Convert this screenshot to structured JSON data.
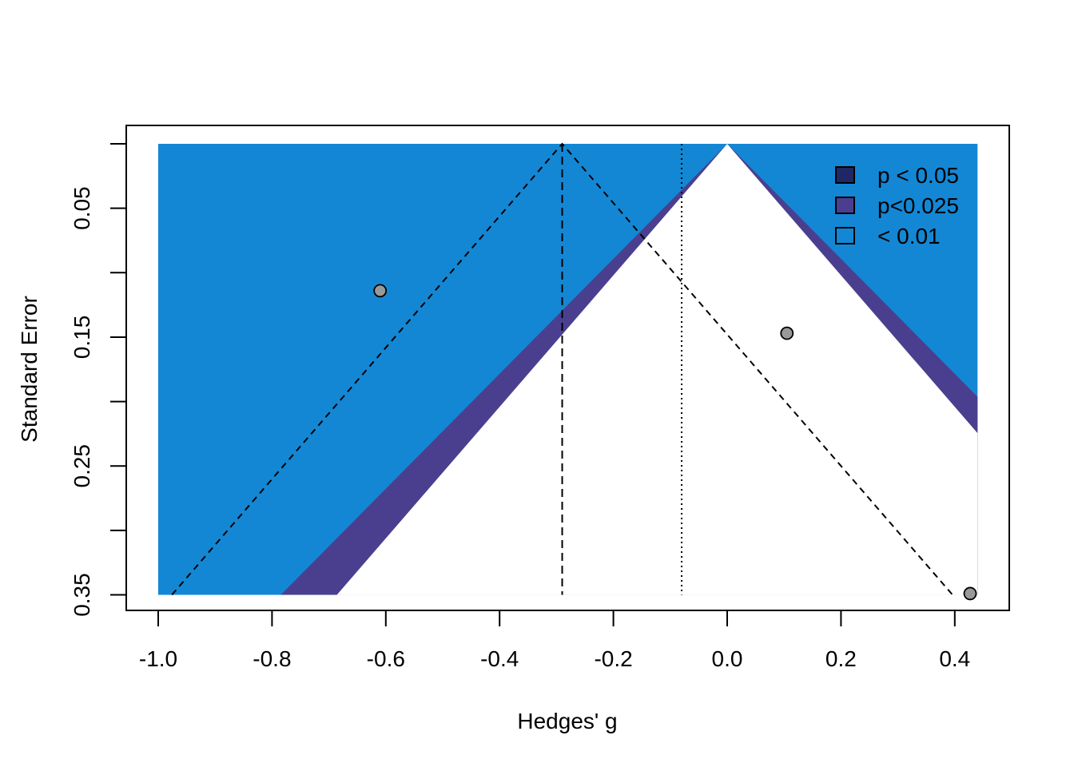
{
  "chart_data": {
    "type": "scatter",
    "subtype": "contour-enhanced funnel plot",
    "title": "",
    "xlabel": "Hedges' g",
    "ylabel": "Standard Error",
    "xlim": [
      -1.0,
      0.44
    ],
    "ylim": [
      0.35,
      0.0
    ],
    "y_reversed": true,
    "x_ticks": [
      "-1.0",
      "-0.8",
      "-0.6",
      "-0.4",
      "-0.2",
      "0.0",
      "0.2",
      "0.4"
    ],
    "y_ticks": [
      {
        "value": 0.0,
        "label": ""
      },
      {
        "value": 0.05,
        "label": "0.05"
      },
      {
        "value": 0.1,
        "label": ""
      },
      {
        "value": 0.15,
        "label": "0.15"
      },
      {
        "value": 0.2,
        "label": ""
      },
      {
        "value": 0.25,
        "label": "0.25"
      },
      {
        "value": 0.3,
        "label": ""
      },
      {
        "value": 0.35,
        "label": "0.35"
      }
    ],
    "points": [
      {
        "x": -0.61,
        "y": 0.114
      },
      {
        "x": 0.105,
        "y": 0.147
      },
      {
        "x": 0.427,
        "y": 0.349
      }
    ],
    "contour_center": 0.0,
    "contours": [
      {
        "name": "p < 0.05",
        "z": 1.959964,
        "color": "#1f2865"
      },
      {
        "name": "p<0.025",
        "z": 2.241403,
        "color": "#4a3f8f"
      },
      {
        "name": "< 0.01",
        "z": 2.575829,
        "color": "#1487d4"
      }
    ],
    "pooled_estimate": -0.29,
    "reference_line": -0.08,
    "funnel_multiplier": 1.96,
    "legend_position": "top-right",
    "grid": false
  }
}
